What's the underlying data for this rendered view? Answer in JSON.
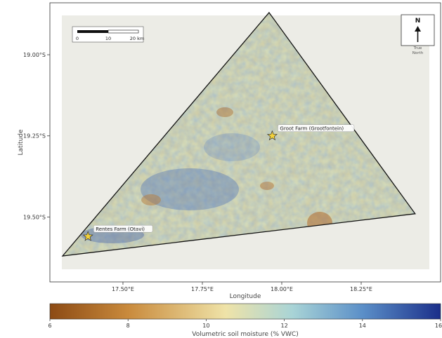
{
  "map": {
    "x_axis_title": "Longitude",
    "y_axis_title": "Latitude",
    "x_ticks": [
      {
        "value": 17.5,
        "label": "17.50°E"
      },
      {
        "value": 17.75,
        "label": "17.75°E"
      },
      {
        "value": 18.0,
        "label": "18.00°E"
      },
      {
        "value": 18.25,
        "label": "18.25°E"
      }
    ],
    "y_ticks": [
      {
        "value": -19.0,
        "label": "19.00°S"
      },
      {
        "value": -19.25,
        "label": "19.25°S"
      },
      {
        "value": -19.5,
        "label": "19.50°S"
      }
    ],
    "lon_range": [
      17.27,
      18.5
    ],
    "lat_range": [
      -19.7,
      -18.84
    ],
    "region_vertices": [
      {
        "lon": 17.31,
        "lat": -19.62
      },
      {
        "lon": 17.96,
        "lat": -18.87
      },
      {
        "lon": 18.42,
        "lat": -19.49
      }
    ],
    "sites": [
      {
        "name": "Groot Farm (Grootfontein)",
        "lon": 17.97,
        "lat": -19.25,
        "marker": "star"
      },
      {
        "name": "Rentes Farm (Otavi)",
        "lon": 17.39,
        "lat": -19.56,
        "marker": "star"
      }
    ],
    "scale_bar": {
      "labels": [
        "0",
        "10",
        "20 km"
      ]
    },
    "north_arrow": {
      "letter": "N",
      "caption_line1": "True",
      "caption_line2": "North"
    },
    "colorbar": {
      "title": "Volumetric soil moisture (% VWC)",
      "min": 6,
      "max": 16,
      "ticks": [
        "6",
        "8",
        "10",
        "12",
        "14",
        "16"
      ],
      "colors": [
        "#8c4a14",
        "#c98a3c",
        "#efe3a8",
        "#a9d4d6",
        "#5b8fc8",
        "#1b2f8a"
      ]
    }
  }
}
